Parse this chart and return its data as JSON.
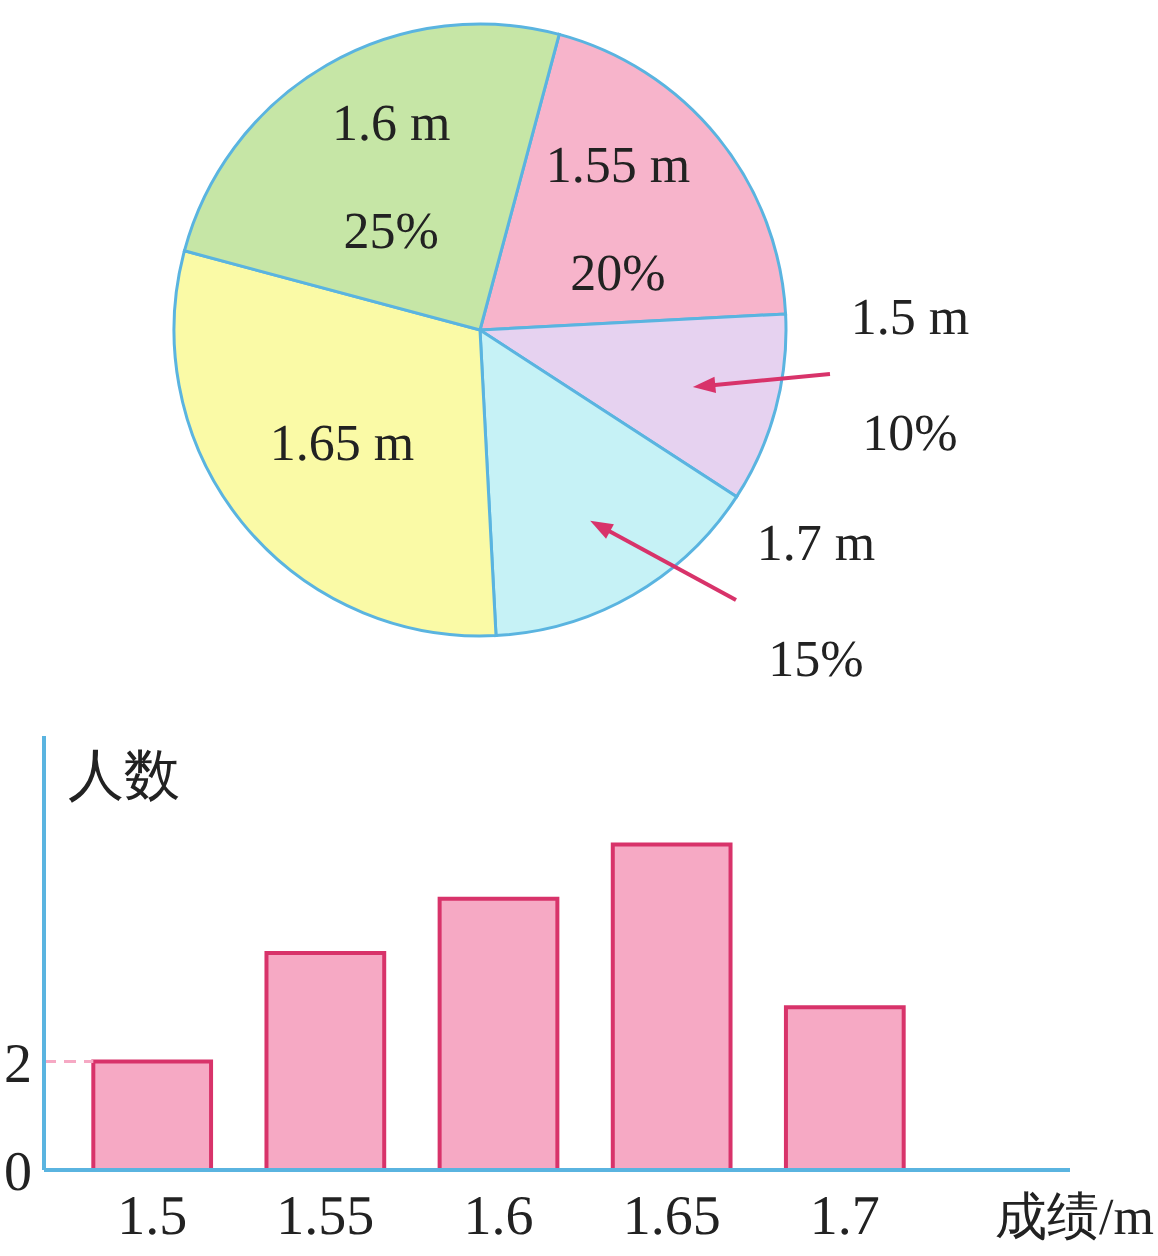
{
  "chart_data": [
    {
      "type": "pie",
      "categories": [
        "1.55 m",
        "1.5 m",
        "1.7 m",
        "1.65 m",
        "1.6 m"
      ],
      "values": [
        20,
        10,
        15,
        30,
        25
      ],
      "colors": [
        "#f7b4cb",
        "#e6d2f0",
        "#c6f2f6",
        "#fafaa6",
        "#c6e6a6"
      ],
      "value_labels": [
        "20%",
        "10%",
        "15%",
        null,
        "25%"
      ]
    },
    {
      "type": "bar",
      "categories": [
        "1.5",
        "1.55",
        "1.6",
        "1.65",
        "1.7"
      ],
      "series": [
        {
          "color": "#f6a9c4",
          "values": [
            2,
            4,
            5,
            6,
            3
          ]
        }
      ],
      "xlabel": "成绩/m",
      "ylabel": "人数",
      "ylim": [
        0,
        8
      ],
      "yticks": [
        0,
        2
      ]
    }
  ]
}
